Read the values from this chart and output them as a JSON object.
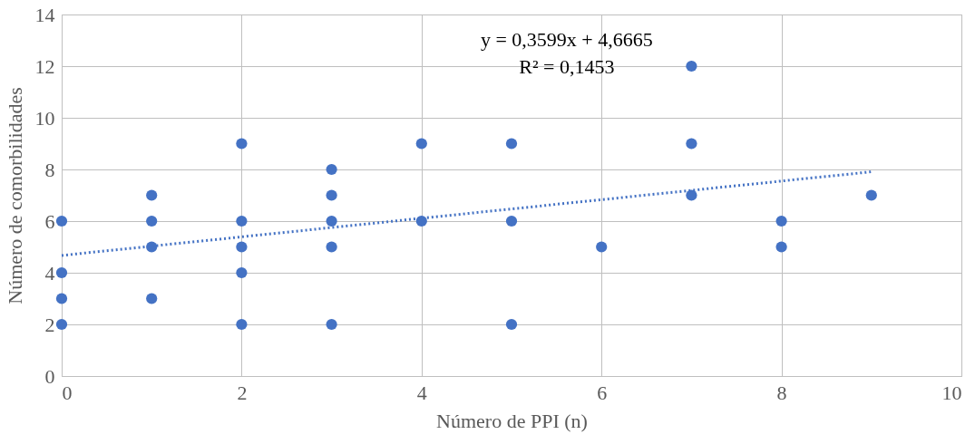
{
  "chart_data": {
    "type": "scatter",
    "xlabel": "Número de PPI (n)",
    "ylabel": "Número de comorbilidades",
    "x": [
      0,
      0,
      0,
      0,
      1,
      1,
      1,
      1,
      2,
      2,
      2,
      2,
      2,
      3,
      3,
      3,
      3,
      3,
      4,
      4,
      5,
      5,
      5,
      6,
      7,
      7,
      7,
      8,
      8,
      9
    ],
    "series": [
      {
        "color": "#4472c4",
        "marker": "circle",
        "values": [
          6,
          4,
          3,
          2,
          7,
          6,
          5,
          3,
          9,
          6,
          5,
          4,
          2,
          8,
          7,
          6,
          5,
          2,
          9,
          6,
          9,
          6,
          2,
          5,
          12,
          9,
          7,
          6,
          5,
          7
        ]
      },
      {
        "type": "line",
        "color": "#4472c4",
        "line_style": "dotted",
        "x": [
          0,
          9
        ],
        "values": [
          4.67,
          7.91
        ]
      }
    ],
    "annotations": [
      "y = 0,3599x + 4,6665",
      "R² = 0,1453"
    ],
    "xlim": [
      0,
      10
    ],
    "xticks": [
      0,
      2,
      4,
      6,
      8,
      10
    ],
    "ylim": [
      0,
      14
    ],
    "yticks": [
      0,
      2,
      4,
      6,
      8,
      10,
      12,
      14
    ],
    "grid": true
  }
}
